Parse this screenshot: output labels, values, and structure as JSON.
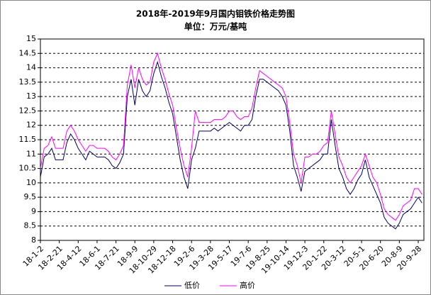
{
  "chart_data": {
    "type": "line",
    "title": "2018年-2019年9月国内钼铁价格走势图",
    "subtitle": "单位：万元/基吨",
    "categories": [
      "18-1-2",
      null,
      null,
      null,
      null,
      "18-2-21",
      null,
      null,
      null,
      null,
      "18-4-12",
      null,
      null,
      null,
      null,
      "18-6-1",
      null,
      null,
      null,
      null,
      "18-7-21",
      null,
      null,
      null,
      null,
      "18-9-9",
      null,
      null,
      null,
      null,
      "18-10-29",
      null,
      null,
      null,
      null,
      "18-12-18",
      null,
      null,
      null,
      null,
      "19-2-6",
      null,
      null,
      null,
      null,
      "19-3-28",
      null,
      null,
      null,
      null,
      "19-5-17",
      null,
      null,
      null,
      null,
      "19-7-6",
      null,
      null,
      null,
      null,
      "19-8-25",
      null,
      null,
      null,
      null,
      "19-10-14",
      null,
      null,
      null,
      null,
      "19-12-3",
      null,
      null,
      null,
      null,
      "20-1-22",
      null,
      null,
      null,
      null,
      "20-3-12",
      null,
      null,
      null,
      null,
      "20-5-1",
      null,
      null,
      null,
      null,
      "20-6-20",
      null,
      null,
      null,
      null,
      "20-8-9",
      null,
      null,
      null,
      null,
      "20-9-28",
      null
    ],
    "series": [
      {
        "name": "低价",
        "color": "#000066",
        "values": [
          10.2,
          10.9,
          11.0,
          11.2,
          10.8,
          10.8,
          10.8,
          11.4,
          11.7,
          11.5,
          11.2,
          11.0,
          10.8,
          11.1,
          11.0,
          10.9,
          10.9,
          10.9,
          10.8,
          10.6,
          10.5,
          10.7,
          11.0,
          13.0,
          13.6,
          12.7,
          13.6,
          13.2,
          13.0,
          13.2,
          13.8,
          14.2,
          13.7,
          13.3,
          12.8,
          12.4,
          11.6,
          10.8,
          10.2,
          9.8,
          10.8,
          11.2,
          11.8,
          11.8,
          11.8,
          11.8,
          11.9,
          11.8,
          11.9,
          12.0,
          12.1,
          12.0,
          11.9,
          11.8,
          12.0,
          12.0,
          12.2,
          13.0,
          13.6,
          13.6,
          13.5,
          13.4,
          13.3,
          13.2,
          13.0,
          12.7,
          11.8,
          10.6,
          10.2,
          9.7,
          10.4,
          10.5,
          10.6,
          10.7,
          10.8,
          11.0,
          11.0,
          12.2,
          11.3,
          10.5,
          10.2,
          9.8,
          9.6,
          9.8,
          10.1,
          10.3,
          10.8,
          10.2,
          9.9,
          9.6,
          9.3,
          8.8,
          8.6,
          8.5,
          8.4,
          8.6,
          8.9,
          9.0,
          9.1,
          9.3,
          9.5,
          9.3
        ]
      },
      {
        "name": "高价",
        "color": "#ff00ff",
        "values": [
          10.5,
          11.2,
          11.3,
          11.6,
          11.2,
          11.2,
          11.2,
          11.8,
          12.0,
          11.8,
          11.5,
          11.3,
          11.1,
          11.3,
          11.3,
          11.2,
          11.2,
          11.2,
          11.1,
          10.9,
          10.8,
          11.0,
          11.3,
          13.4,
          14.1,
          13.3,
          14.0,
          13.6,
          13.4,
          13.5,
          14.2,
          14.5,
          14.0,
          13.6,
          13.1,
          12.7,
          11.9,
          11.2,
          10.6,
          10.2,
          11.2,
          12.5,
          12.1,
          12.1,
          12.1,
          12.1,
          12.2,
          12.2,
          12.2,
          12.3,
          12.5,
          12.5,
          12.3,
          12.2,
          12.3,
          12.3,
          12.6,
          13.3,
          13.9,
          13.8,
          13.7,
          13.6,
          13.5,
          13.4,
          13.3,
          13.0,
          12.1,
          11.0,
          10.6,
          10.0,
          10.9,
          10.9,
          11.0,
          11.0,
          11.1,
          11.3,
          11.4,
          12.5,
          11.7,
          10.9,
          10.6,
          10.2,
          10.0,
          10.2,
          10.4,
          10.6,
          11.0,
          10.6,
          10.2,
          10.0,
          9.6,
          9.1,
          8.9,
          8.8,
          8.7,
          8.9,
          9.2,
          9.3,
          9.4,
          9.8,
          9.8,
          9.6
        ]
      }
    ],
    "ylim": [
      8,
      15
    ],
    "yticks": [
      8,
      8.5,
      9,
      9.5,
      10,
      10.5,
      11,
      11.5,
      12,
      12.5,
      13,
      13.5,
      14,
      14.5,
      15
    ],
    "grid": true,
    "legend": "bottom"
  }
}
